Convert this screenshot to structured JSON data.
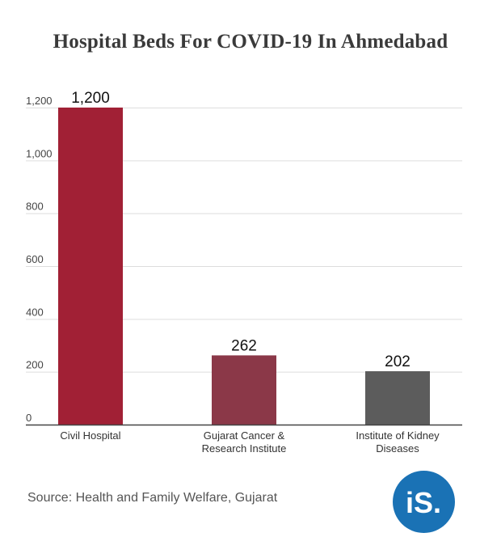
{
  "title": "Hospital Beds For COVID-19 In Ahmedabad",
  "source": "Source: Health and Family Welfare, Gujarat",
  "logo": {
    "text": "iS.",
    "color": "#1a72b5"
  },
  "chart_data": {
    "type": "bar",
    "title": "Hospital Beds For COVID-19 In Ahmedabad",
    "xlabel": "",
    "ylabel": "",
    "ylim": [
      0,
      1200
    ],
    "yticks": [
      0,
      200,
      400,
      600,
      800,
      1000,
      1200
    ],
    "ytick_labels": [
      "0",
      "200",
      "400",
      "600",
      "800",
      "1,000",
      "1,200"
    ],
    "grid": true,
    "categories": [
      [
        "Civil Hospital"
      ],
      [
        "Gujarat Cancer &",
        "Research Institute"
      ],
      [
        "Institute of Kidney",
        "Diseases"
      ]
    ],
    "values": [
      1200,
      262,
      202
    ],
    "value_labels": [
      "1,200",
      "262",
      "202"
    ],
    "colors": [
      "#a12035",
      "#8b3848",
      "#5c5c5c"
    ]
  }
}
